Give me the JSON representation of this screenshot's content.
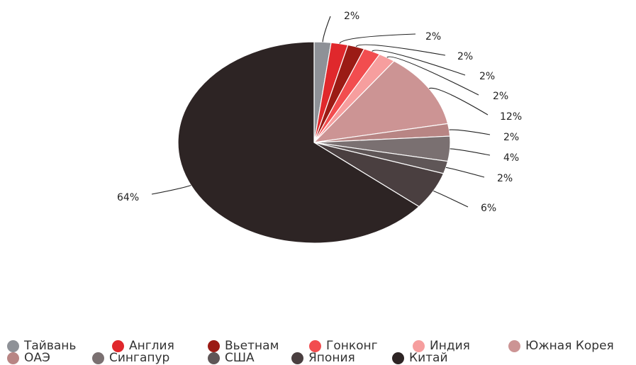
{
  "chart_data": {
    "type": "pie",
    "title": "",
    "start_angle_deg": 0,
    "direction": "clockwise",
    "slices": [
      {
        "name": "Тайвань",
        "value": 2,
        "label": "2%",
        "color": "#8e9197"
      },
      {
        "name": "Англия",
        "value": 2,
        "label": "2%",
        "color": "#e0282c"
      },
      {
        "name": "Вьетнам",
        "value": 2,
        "label": "2%",
        "color": "#9b1b15"
      },
      {
        "name": "Гонконг",
        "value": 2,
        "label": "2%",
        "color": "#f24d4f"
      },
      {
        "name": "Индия",
        "value": 2,
        "label": "2%",
        "color": "#f69e9e"
      },
      {
        "name": "Южная Корея",
        "value": 12,
        "label": "12%",
        "color": "#cc9494"
      },
      {
        "name": "ОАЭ",
        "value": 2,
        "label": "2%",
        "color": "#b88584"
      },
      {
        "name": "Сингапур",
        "value": 4,
        "label": "4%",
        "color": "#7a7071"
      },
      {
        "name": "США",
        "value": 2,
        "label": "2%",
        "color": "#5f5657"
      },
      {
        "name": "Япония",
        "value": 6,
        "label": "6%",
        "color": "#4a3f40"
      },
      {
        "name": "Китай",
        "value": 64,
        "label": "64%",
        "color": "#2d2424"
      }
    ],
    "legend": {
      "position": "bottom",
      "rows": 2
    }
  }
}
